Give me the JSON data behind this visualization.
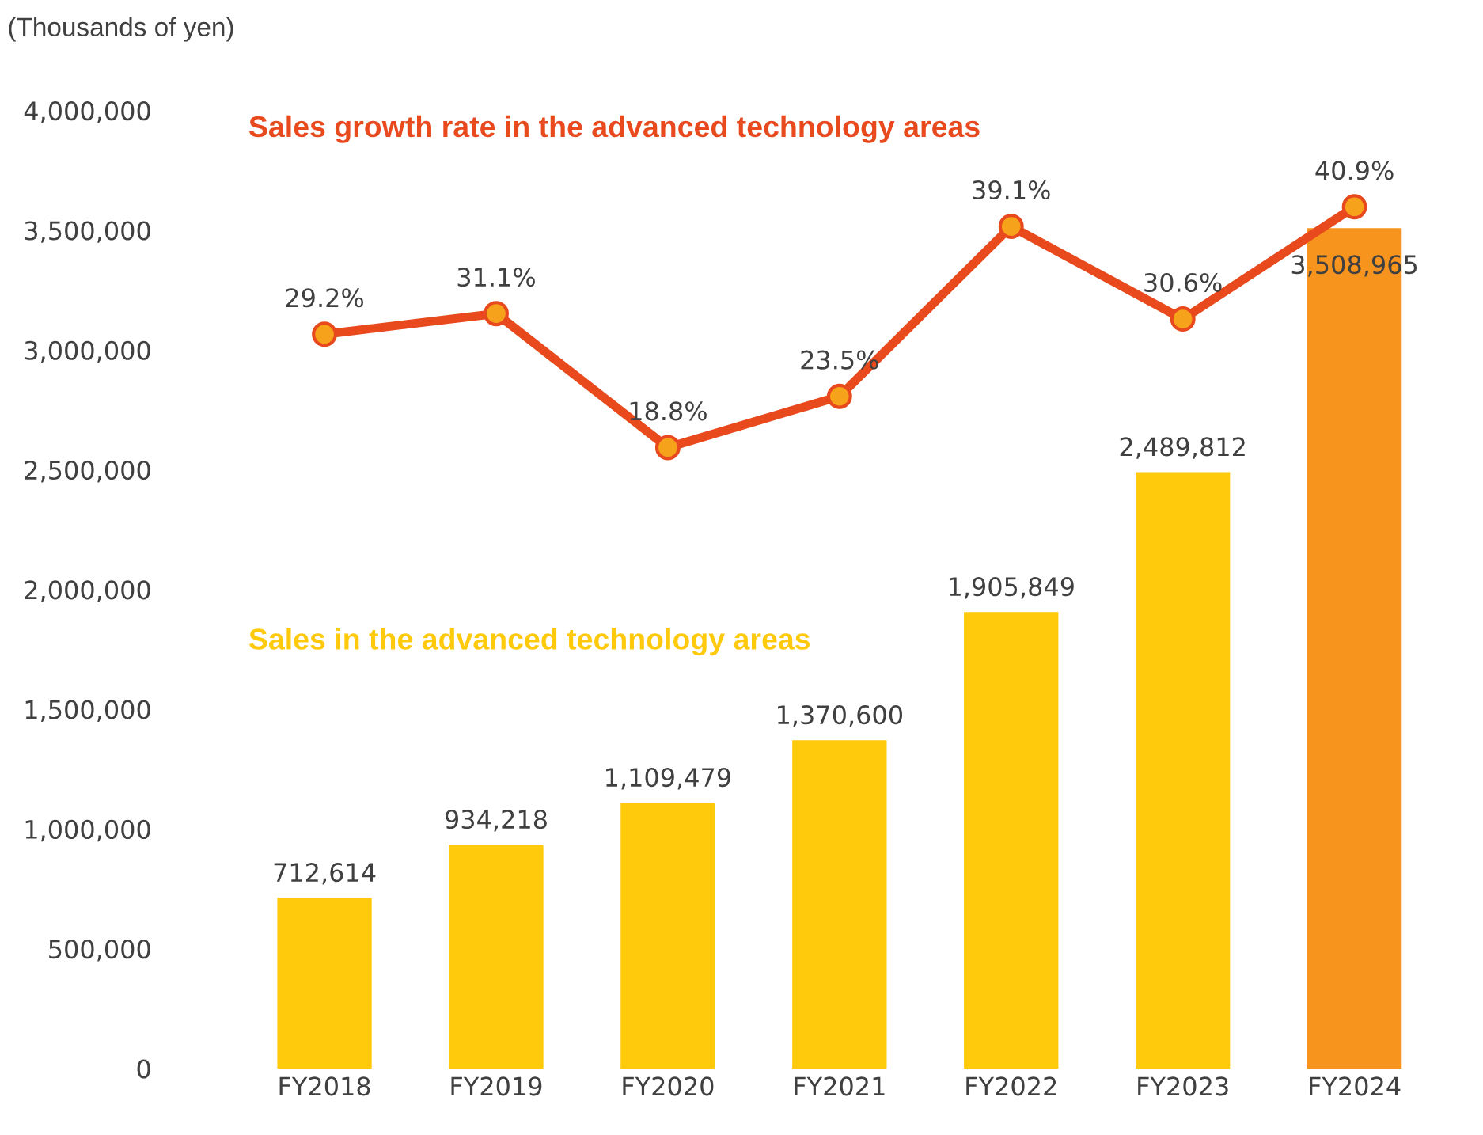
{
  "chart_data": {
    "type": "bar",
    "ylabel": "(Thousands of yen)",
    "categories": [
      "FY2018",
      "FY2019",
      "FY2020",
      "FY2021",
      "FY2022",
      "FY2023",
      "FY2024"
    ],
    "series": [
      {
        "name": "Sales in the advanced technology areas",
        "colors": [
          "#ffc90c",
          "#ffc90c",
          "#ffc90c",
          "#ffc90c",
          "#ffc90c",
          "#ffc90c",
          "#f7941d"
        ],
        "color": "#ffc90c",
        "values": [
          712614,
          934218,
          1109479,
          1370600,
          1905849,
          2489812,
          3508965
        ],
        "value_labels": [
          "712,614",
          "934,218",
          "1,109,479",
          "1,370,600",
          "1,905,849",
          "2,489,812",
          "3,508,965"
        ]
      },
      {
        "name": "Sales growth rate in the advanced technology areas",
        "type": "line",
        "axis": "y2",
        "color": "#e84a1e",
        "values": [
          29.2,
          31.1,
          18.8,
          23.5,
          39.1,
          30.6,
          40.9
        ],
        "value_labels": [
          "29.2%",
          "31.1%",
          "18.8%",
          "23.5%",
          "39.1%",
          "30.6%",
          "40.9%"
        ]
      }
    ],
    "ylim": [
      0,
      4000000
    ],
    "yticks": [
      {
        "value": 0,
        "label": "0"
      },
      {
        "value": 500000,
        "label": "500,000"
      },
      {
        "value": 1000000,
        "label": "1,000,000"
      },
      {
        "value": 1500000,
        "label": "1,500,000"
      },
      {
        "value": 2000000,
        "label": "2,000,000"
      },
      {
        "value": 2500000,
        "label": "2,500,000"
      },
      {
        "value": 3000000,
        "label": "3,000,000"
      },
      {
        "value": 3500000,
        "label": "3,500,000"
      },
      {
        "value": 4000000,
        "label": "4,000,000"
      }
    ],
    "tick_labels": "xy",
    "marker": "circle",
    "grid": false,
    "legend": false
  }
}
